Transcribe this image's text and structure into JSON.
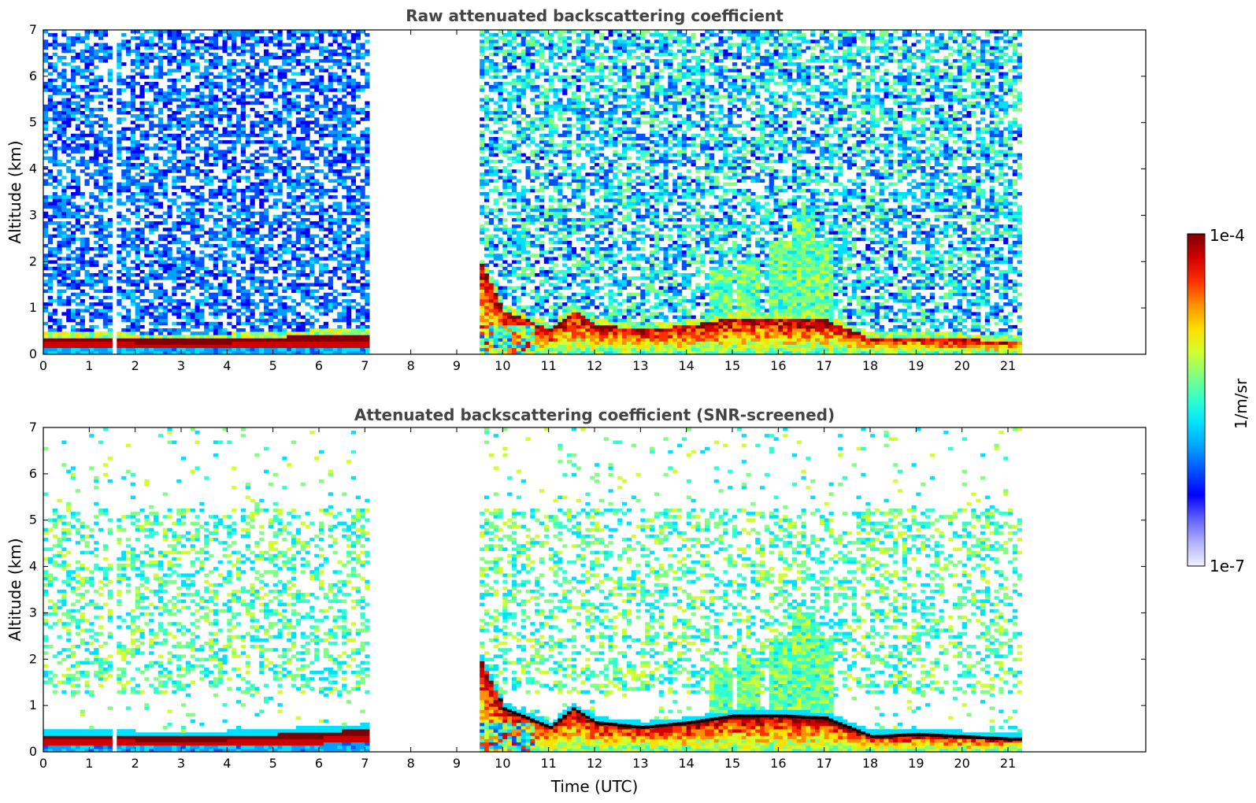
{
  "colormap": [
    "#f0f0ff",
    "#b0b0ff",
    "#6060ff",
    "#0000ff",
    "#0050ff",
    "#00a0ff",
    "#00e0ff",
    "#30ffd0",
    "#80ff80",
    "#d0ff30",
    "#ffe000",
    "#ff9000",
    "#ff3000",
    "#d00000",
    "#800000"
  ],
  "chart_data": [
    {
      "type": "heatmap",
      "title": "Raw attenuated backscattering coefficient",
      "xlabel": "",
      "ylabel": "Altitude (km)",
      "xlim": [
        0,
        24
      ],
      "ylim": [
        0,
        7
      ],
      "x_ticks": [
        "0",
        "1",
        "2",
        "3",
        "4",
        "5",
        "6",
        "7",
        "8",
        "9",
        "10",
        "11",
        "12",
        "13",
        "14",
        "15",
        "16",
        "17",
        "18",
        "19",
        "20",
        "21"
      ],
      "y_ticks": [
        "0",
        "1",
        "2",
        "3",
        "4",
        "5",
        "6",
        "7"
      ],
      "data_segments": [
        [
          0,
          7.0
        ],
        [
          9.4,
          21.3
        ]
      ],
      "data_gaps": [
        [
          1.45,
          1.58
        ],
        [
          7.0,
          9.4
        ],
        [
          21.3,
          24
        ]
      ],
      "boundary_layer_top_km": [
        [
          0,
          0.35
        ],
        [
          2,
          0.3
        ],
        [
          4,
          0.3
        ],
        [
          6,
          0.38
        ],
        [
          7,
          0.4
        ],
        [
          9.4,
          2.1
        ],
        [
          10,
          0.9
        ],
        [
          11,
          0.5
        ],
        [
          11.5,
          0.9
        ],
        [
          12,
          0.6
        ],
        [
          13,
          0.5
        ],
        [
          14,
          0.6
        ],
        [
          15,
          0.75
        ],
        [
          16,
          0.75
        ],
        [
          17,
          0.7
        ],
        [
          18,
          0.3
        ],
        [
          19,
          0.35
        ],
        [
          20,
          0.3
        ],
        [
          21,
          0.25
        ]
      ],
      "convective_plumes": [
        [
          14.7,
          1.8
        ],
        [
          15.3,
          2.0
        ],
        [
          16.0,
          2.4
        ],
        [
          16.5,
          3.0
        ],
        [
          16.9,
          2.4
        ]
      ],
      "grid": false
    },
    {
      "type": "heatmap",
      "title": "Attenuated backscattering coefficient (SNR-screened)",
      "xlabel": "Time (UTC)",
      "ylabel": "Altitude (km)",
      "xlim": [
        0,
        24
      ],
      "ylim": [
        0,
        7
      ],
      "x_ticks": [
        "0",
        "1",
        "2",
        "3",
        "4",
        "5",
        "6",
        "7",
        "8",
        "9",
        "10",
        "11",
        "12",
        "13",
        "14",
        "15",
        "16",
        "17",
        "18",
        "19",
        "20",
        "21"
      ],
      "y_ticks": [
        "0",
        "1",
        "2",
        "3",
        "4",
        "5",
        "6",
        "7"
      ],
      "data_segments": [
        [
          0,
          7.0
        ],
        [
          9.4,
          21.3
        ]
      ],
      "data_gaps": [
        [
          1.45,
          1.58
        ],
        [
          7.0,
          9.4
        ],
        [
          21.3,
          24
        ]
      ],
      "boundary_layer_top_km": [
        [
          0,
          0.35
        ],
        [
          2,
          0.3
        ],
        [
          4,
          0.3
        ],
        [
          6,
          0.4
        ],
        [
          7,
          0.45
        ],
        [
          9.4,
          2.1
        ],
        [
          10,
          0.9
        ],
        [
          11,
          0.5
        ],
        [
          11.5,
          0.9
        ],
        [
          12,
          0.6
        ],
        [
          13,
          0.5
        ],
        [
          14,
          0.6
        ],
        [
          15,
          0.75
        ],
        [
          16,
          0.75
        ],
        [
          17,
          0.7
        ],
        [
          18,
          0.3
        ],
        [
          19,
          0.35
        ],
        [
          20,
          0.3
        ],
        [
          21,
          0.25
        ]
      ],
      "convective_plumes": [
        [
          14.7,
          1.8
        ],
        [
          15.3,
          2.0
        ],
        [
          16.0,
          2.4
        ],
        [
          16.5,
          3.0
        ],
        [
          16.9,
          2.4
        ]
      ],
      "grid": false
    }
  ],
  "colorbar": {
    "max_label": "1e-4",
    "min_label": "1e-7",
    "unit_label": "1/m/sr",
    "scale": "log",
    "range": [
      1e-07,
      0.0001
    ]
  }
}
